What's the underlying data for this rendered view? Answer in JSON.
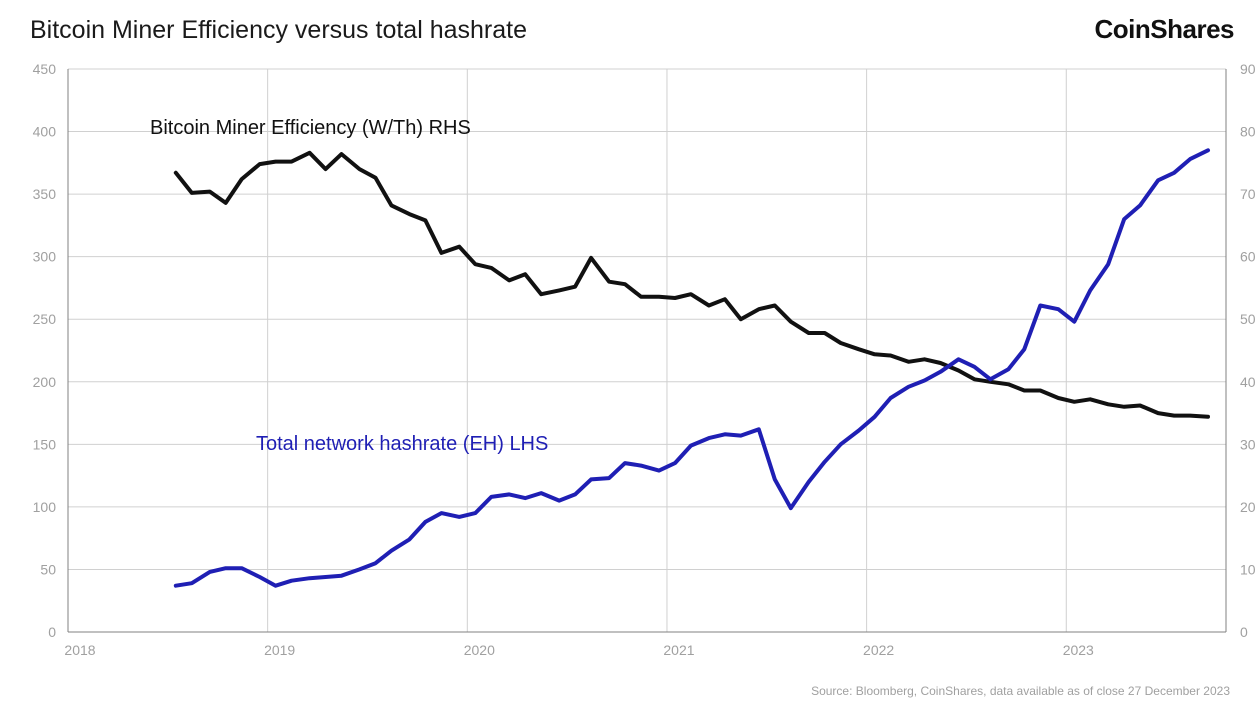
{
  "header": {
    "title": "Bitcoin Miner Efficiency versus total hashrate",
    "logo_text": "CoinShares"
  },
  "footer": {
    "source": "Source: Bloomberg, CoinShares, data available as of close 27 December 2023"
  },
  "colors": {
    "efficiency": "#111111",
    "hashrate": "#1f1fb4",
    "grid": "#d0d0d0",
    "axis": "#808080",
    "tick_text": "#a0a0a0"
  },
  "chart_data": {
    "type": "line",
    "x_ticks": [
      "2018",
      "2019",
      "2020",
      "2021",
      "2022",
      "2023"
    ],
    "x_range": [
      2018.0,
      2023.8
    ],
    "y_left": {
      "range": [
        0,
        450
      ],
      "ticks": [
        "0",
        "50",
        "100",
        "150",
        "200",
        "250",
        "300",
        "350",
        "400",
        "450"
      ]
    },
    "y_right": {
      "range": [
        0,
        90
      ],
      "ticks": [
        "0",
        "10",
        "20",
        "30",
        "40",
        "50",
        "60",
        "70",
        "80",
        "90"
      ]
    },
    "grid": true,
    "series": [
      {
        "name": "Bitcoin Miner Efficiency (W/Th) RHS",
        "axis": "right",
        "x": [
          2018.54,
          2018.62,
          2018.71,
          2018.79,
          2018.87,
          2018.96,
          2019.04,
          2019.12,
          2019.21,
          2019.29,
          2019.37,
          2019.46,
          2019.54,
          2019.62,
          2019.71,
          2019.79,
          2019.87,
          2019.96,
          2020.04,
          2020.12,
          2020.21,
          2020.29,
          2020.37,
          2020.46,
          2020.54,
          2020.62,
          2020.71,
          2020.79,
          2020.87,
          2020.96,
          2021.04,
          2021.12,
          2021.21,
          2021.29,
          2021.37,
          2021.46,
          2021.54,
          2021.62,
          2021.71,
          2021.79,
          2021.87,
          2021.96,
          2022.04,
          2022.12,
          2022.21,
          2022.29,
          2022.37,
          2022.46,
          2022.54,
          2022.62,
          2022.71,
          2022.79,
          2022.87,
          2022.96,
          2023.04,
          2023.12,
          2023.21,
          2023.29,
          2023.37,
          2023.46,
          2023.54,
          2023.62,
          2023.71
        ],
        "values": [
          73.4,
          70.2,
          70.4,
          68.6,
          72.4,
          74.8,
          75.2,
          75.2,
          76.6,
          74.0,
          76.4,
          74.0,
          72.6,
          68.2,
          66.8,
          65.8,
          60.6,
          61.6,
          58.8,
          58.2,
          56.2,
          57.2,
          54.0,
          54.6,
          55.2,
          59.8,
          56.0,
          55.6,
          53.6,
          53.6,
          53.4,
          54.0,
          52.2,
          53.2,
          50.0,
          51.6,
          52.2,
          49.6,
          47.8,
          47.8,
          46.2,
          45.2,
          44.4,
          44.2,
          43.2,
          43.6,
          43.0,
          41.8,
          40.4,
          40.0,
          39.6,
          38.6,
          38.6,
          37.4,
          36.8,
          37.2,
          36.4,
          36.0,
          36.2,
          35.0,
          34.6,
          34.6,
          34.4
        ]
      },
      {
        "name": "Total network hashrate (EH) LHS",
        "axis": "left",
        "x": [
          2018.54,
          2018.62,
          2018.71,
          2018.79,
          2018.87,
          2018.96,
          2019.04,
          2019.12,
          2019.21,
          2019.29,
          2019.37,
          2019.46,
          2019.54,
          2019.62,
          2019.71,
          2019.79,
          2019.87,
          2019.96,
          2020.04,
          2020.12,
          2020.21,
          2020.29,
          2020.37,
          2020.46,
          2020.54,
          2020.62,
          2020.71,
          2020.79,
          2020.87,
          2020.96,
          2021.04,
          2021.12,
          2021.21,
          2021.29,
          2021.37,
          2021.46,
          2021.54,
          2021.62,
          2021.71,
          2021.79,
          2021.87,
          2021.96,
          2022.04,
          2022.12,
          2022.21,
          2022.29,
          2022.37,
          2022.46,
          2022.54,
          2022.62,
          2022.71,
          2022.79,
          2022.87,
          2022.96,
          2023.04,
          2023.12,
          2023.21,
          2023.29,
          2023.37,
          2023.46,
          2023.54,
          2023.62,
          2023.71
        ],
        "values": [
          37,
          39,
          48,
          51,
          51,
          44,
          37,
          41,
          43,
          44,
          45,
          50,
          55,
          65,
          74,
          88,
          95,
          92,
          95,
          108,
          110,
          107,
          111,
          105,
          110,
          122,
          123,
          135,
          133,
          129,
          135,
          149,
          155,
          158,
          157,
          162,
          122,
          99,
          120,
          136,
          150,
          161,
          172,
          187,
          196,
          201,
          208,
          218,
          212,
          202,
          210,
          226,
          261,
          258,
          248,
          273,
          294,
          330,
          341,
          361,
          367,
          378,
          385
        ]
      }
    ],
    "annotations": {
      "efficiency_label": "Bitcoin Miner Efficiency (W/Th) RHS",
      "hashrate_label": "Total network hashrate (EH) LHS"
    }
  }
}
